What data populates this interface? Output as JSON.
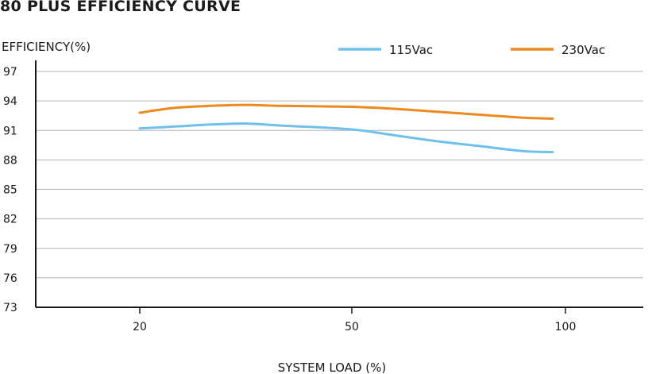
{
  "chart_data": {
    "type": "line",
    "title": "80 PLUS EFFICIENCY CURVE",
    "xlabel": "SYSTEM LOAD (%)",
    "ylabel": "EFFICIENCY(%)",
    "x_ticks": [
      20,
      50,
      100
    ],
    "y_ticks": [
      73,
      76,
      79,
      82,
      85,
      88,
      91,
      94,
      97
    ],
    "ylim": [
      73,
      97
    ],
    "grid": "horizontal",
    "legend_position": "top-right",
    "series": [
      {
        "name": "115Vac",
        "color": "#6ec1ea",
        "points": [
          [
            20,
            91.2
          ],
          [
            25,
            91.4
          ],
          [
            30,
            91.6
          ],
          [
            35,
            91.7
          ],
          [
            40,
            91.5
          ],
          [
            50,
            91.1
          ],
          [
            60,
            90.5
          ],
          [
            70,
            89.9
          ],
          [
            80,
            89.4
          ],
          [
            90,
            88.9
          ],
          [
            97,
            88.8
          ]
        ]
      },
      {
        "name": "230Vac",
        "color": "#ec8a1e",
        "points": [
          [
            20,
            92.8
          ],
          [
            25,
            93.3
          ],
          [
            30,
            93.5
          ],
          [
            35,
            93.6
          ],
          [
            40,
            93.5
          ],
          [
            50,
            93.4
          ],
          [
            60,
            93.2
          ],
          [
            70,
            92.9
          ],
          [
            80,
            92.6
          ],
          [
            90,
            92.3
          ],
          [
            97,
            92.2
          ]
        ]
      }
    ]
  }
}
